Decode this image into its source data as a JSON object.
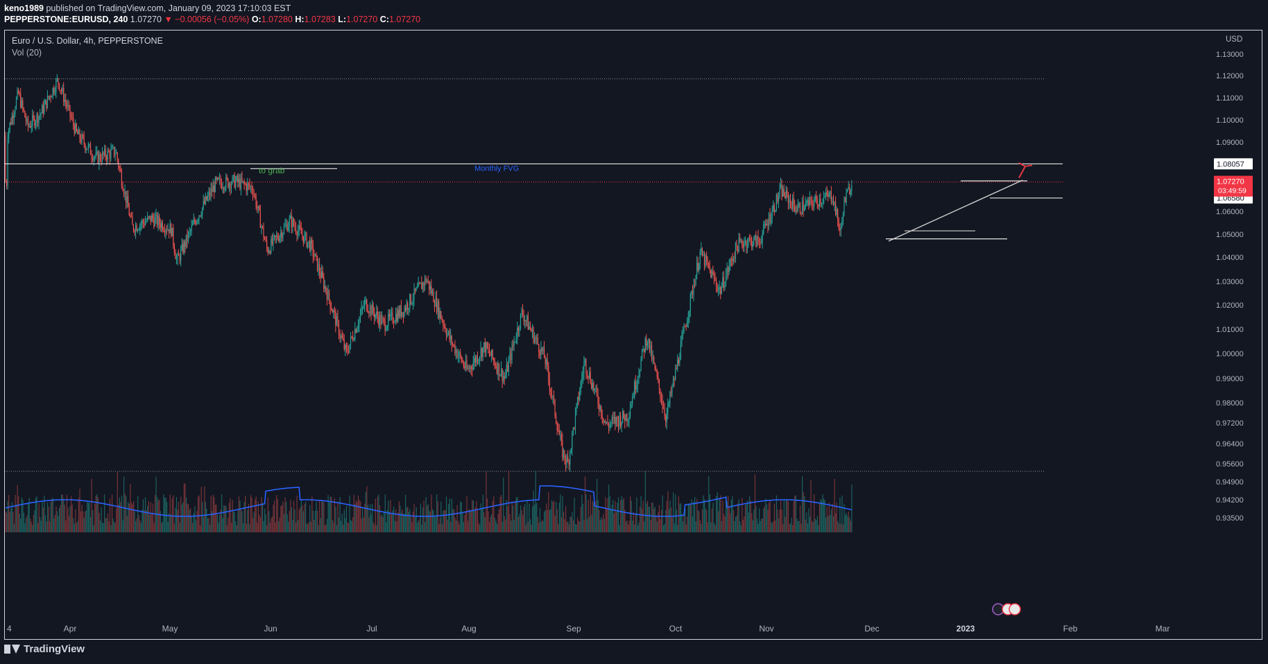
{
  "header": {
    "author": "keno1989",
    "published_text": "published on TradingView.com, January 09, 2023 17:10:03 EST",
    "symbol": "PEPPERSTONE:EURUSD, 240",
    "last": "1.07270",
    "change": "▼ −0.00056 (−0.05%)",
    "o_label": "O:",
    "o_val": "1.07280",
    "h_label": "H:",
    "h_val": "1.07283",
    "l_label": "L:",
    "l_val": "1.07270",
    "c_label": "C:",
    "c_val": "1.07270"
  },
  "legend": {
    "title": "Euro / U.S. Dollar, 4h, PEPPERSTONE",
    "volume": "Vol (20)"
  },
  "axis_unit": "USD",
  "footer": {
    "brand": "TradingView"
  },
  "colors": {
    "up": "#26a69a",
    "down": "#ef5350",
    "vol_ma": "#2962ff",
    "bg": "#131722",
    "last_price": "#f23645"
  },
  "chart_data": {
    "type": "candlestick",
    "y_ticks": [
      "1.13000",
      "1.12000",
      "1.11000",
      "1.10000",
      "1.09000",
      "1.08057",
      "1.07270",
      "1.06580",
      "1.06000",
      "1.05000",
      "1.04000",
      "1.03000",
      "1.02000",
      "1.01000",
      "1.00000",
      "0.99000",
      "0.98000",
      "0.97200",
      "0.96400",
      "0.95600",
      "0.94900",
      "0.94200",
      "0.93500"
    ],
    "x_ticks": [
      "4",
      "Apr",
      "May",
      "Jun",
      "Jul",
      "Aug",
      "Sep",
      "Oct",
      "Nov",
      "Dec",
      "2023",
      "Feb",
      "Mar"
    ],
    "price_path": [
      [
        "2022-03-04",
        1.093
      ],
      [
        "2022-03-10",
        1.112
      ],
      [
        "2022-03-15",
        1.097
      ],
      [
        "2022-03-22",
        1.103
      ],
      [
        "2022-03-31",
        1.118
      ],
      [
        "2022-04-07",
        1.094
      ],
      [
        "2022-04-14",
        1.083
      ],
      [
        "2022-04-21",
        1.086
      ],
      [
        "2022-04-27",
        1.053
      ],
      [
        "2022-05-04",
        1.057
      ],
      [
        "2022-05-11",
        1.052
      ],
      [
        "2022-05-13",
        1.038
      ],
      [
        "2022-05-20",
        1.057
      ],
      [
        "2022-05-27",
        1.072
      ],
      [
        "2022-06-03",
        1.073
      ],
      [
        "2022-06-09",
        1.07
      ],
      [
        "2022-06-14",
        1.043
      ],
      [
        "2022-06-22",
        1.056
      ],
      [
        "2022-06-29",
        1.045
      ],
      [
        "2022-07-05",
        1.025
      ],
      [
        "2022-07-12",
        1.0
      ],
      [
        "2022-07-19",
        1.021
      ],
      [
        "2022-07-26",
        1.012
      ],
      [
        "2022-08-02",
        1.018
      ],
      [
        "2022-08-10",
        1.031
      ],
      [
        "2022-08-18",
        1.006
      ],
      [
        "2022-08-24",
        0.993
      ],
      [
        "2022-08-30",
        1.003
      ],
      [
        "2022-09-06",
        0.99
      ],
      [
        "2022-09-12",
        1.017
      ],
      [
        "2022-09-20",
        0.998
      ],
      [
        "2022-09-26",
        0.961
      ],
      [
        "2022-09-28",
        0.956
      ],
      [
        "2022-10-04",
        0.997
      ],
      [
        "2022-10-12",
        0.971
      ],
      [
        "2022-10-20",
        0.975
      ],
      [
        "2022-10-27",
        1.007
      ],
      [
        "2022-11-03",
        0.974
      ],
      [
        "2022-11-09",
        1.007
      ],
      [
        "2022-11-15",
        1.042
      ],
      [
        "2022-11-22",
        1.026
      ],
      [
        "2022-11-28",
        1.045
      ],
      [
        "2022-12-01",
        1.047
      ],
      [
        "2022-12-06",
        1.047
      ],
      [
        "2022-12-14",
        1.069
      ],
      [
        "2022-12-20",
        1.061
      ],
      [
        "2022-12-28",
        1.065
      ],
      [
        "2023-01-02",
        1.067
      ],
      [
        "2023-01-05",
        1.05
      ],
      [
        "2023-01-06",
        1.063
      ],
      [
        "2023-01-09",
        1.0727
      ]
    ],
    "levels": [
      {
        "price": 1.08057,
        "label": "1.08057",
        "style": "solid-white"
      },
      {
        "price": 1.0658,
        "label": "1.06580",
        "style": "solid-white"
      },
      {
        "price": 1.0727,
        "label": "1.07270",
        "sublabel": "03:49:59",
        "style": "last-price"
      }
    ],
    "annotations": [
      {
        "text": "to grab",
        "color": "#4caf50"
      },
      {
        "text": "Monthly FVG",
        "color": "#2962ff"
      }
    ],
    "volume_series": "Vol (20)",
    "last_price": 1.0727,
    "grid": false
  }
}
